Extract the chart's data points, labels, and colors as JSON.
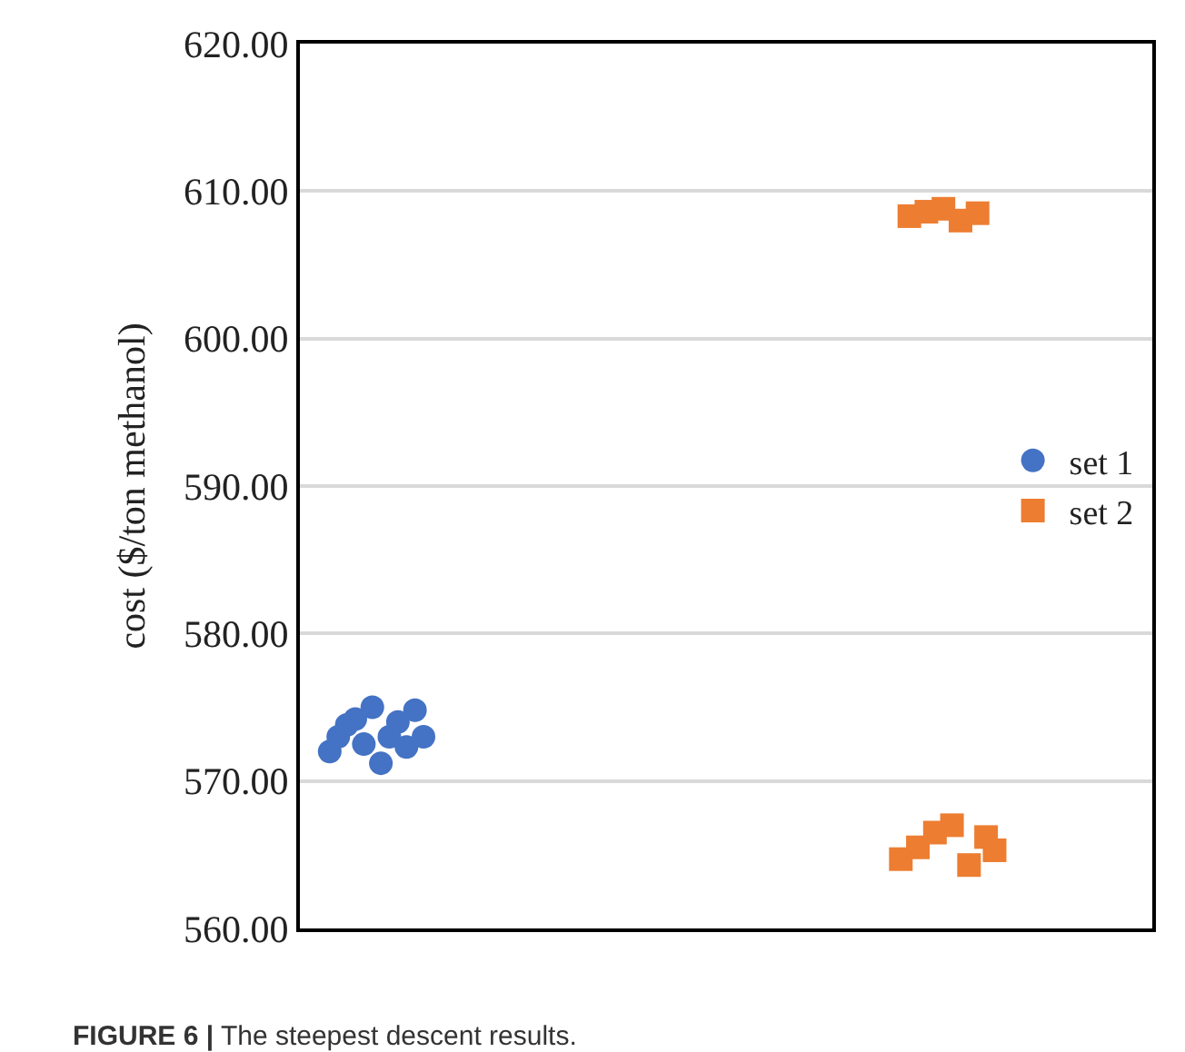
{
  "chart_data": {
    "type": "scatter",
    "ylabel": "cost ($/ton methanol)",
    "categories": [
      null,
      null,
      null,
      null,
      null,
      null,
      null,
      null,
      null,
      null,
      null,
      null,
      null,
      null,
      null,
      null,
      null,
      null,
      null,
      null,
      null,
      null,
      null,
      null,
      null,
      null,
      null,
      null,
      null,
      null,
      null,
      null,
      null,
      null,
      null,
      null,
      null,
      null,
      null,
      null,
      null,
      null,
      null,
      null,
      null,
      null,
      null,
      null,
      null,
      null,
      null,
      null,
      null,
      null,
      null,
      null,
      null,
      null,
      null,
      null,
      null,
      null,
      null,
      null,
      null,
      null,
      null,
      null,
      null,
      null,
      null,
      null,
      null,
      null,
      null,
      null,
      null,
      null,
      null,
      null,
      null,
      null,
      null,
      null,
      null,
      null,
      null,
      null,
      null,
      null,
      null,
      null,
      null,
      null,
      null,
      null,
      null,
      null,
      null,
      null
    ],
    "ylim": [
      560,
      620
    ],
    "yticks": [
      {
        "value": 560,
        "label": "560.00"
      },
      {
        "value": 570,
        "label": "570.00"
      },
      {
        "value": 580,
        "label": "580.00"
      },
      {
        "value": 590,
        "label": "590.00"
      },
      {
        "value": 600,
        "label": "600.00"
      },
      {
        "value": 610,
        "label": "610.00"
      },
      {
        "value": 620,
        "label": "620.00"
      }
    ],
    "tick_labels": "y",
    "grid": "y",
    "legend": "right",
    "annotations": [
      "FIGURE 6 | The steepest descent results."
    ],
    "series": [
      {
        "name": "set 1",
        "color": "#4472c4",
        "marker": "circle",
        "values": [
          null,
          null,
          null,
          572.0,
          573.0,
          573.8,
          574.2,
          572.5,
          575.0,
          571.2,
          573.0,
          574.0,
          572.3,
          574.8,
          573.0,
          null,
          null,
          null,
          null,
          null,
          null,
          null,
          null,
          null,
          null,
          null,
          null,
          null,
          null,
          null,
          null,
          null,
          null,
          null,
          null,
          null,
          null,
          null,
          null,
          null,
          null,
          null,
          null,
          null,
          null,
          null,
          null,
          null,
          null,
          null,
          null,
          null,
          null,
          null,
          null,
          null,
          null,
          null,
          null,
          null,
          null,
          null,
          null,
          null,
          null,
          null,
          null,
          null,
          null,
          null,
          null,
          null,
          null,
          null,
          null,
          null,
          null,
          null,
          null,
          null,
          null,
          null,
          null,
          null,
          null,
          null,
          null,
          null,
          null,
          null,
          null,
          null,
          null,
          null,
          null,
          null,
          null,
          null,
          null,
          null
        ]
      },
      {
        "name": "set 2",
        "color": "#ed7d31",
        "marker": "square",
        "values": [
          null,
          null,
          null,
          null,
          null,
          null,
          null,
          null,
          null,
          null,
          null,
          null,
          null,
          null,
          null,
          null,
          null,
          null,
          null,
          null,
          null,
          null,
          null,
          null,
          null,
          null,
          null,
          null,
          null,
          null,
          null,
          null,
          null,
          null,
          null,
          null,
          null,
          null,
          null,
          null,
          null,
          null,
          null,
          null,
          null,
          null,
          null,
          null,
          null,
          null,
          null,
          null,
          null,
          null,
          null,
          null,
          null,
          null,
          null,
          null,
          null,
          null,
          null,
          null,
          null,
          null,
          null,
          null,
          null,
          null,
          564.7,
          608.3,
          565.5,
          608.6,
          566.5,
          608.8,
          567.0,
          608.0,
          564.3,
          608.5,
          566.2,
          565.3,
          null,
          null,
          null,
          null,
          null,
          null,
          null,
          null,
          null,
          null,
          null,
          null,
          null,
          null,
          null,
          null,
          null,
          null
        ]
      }
    ]
  }
}
